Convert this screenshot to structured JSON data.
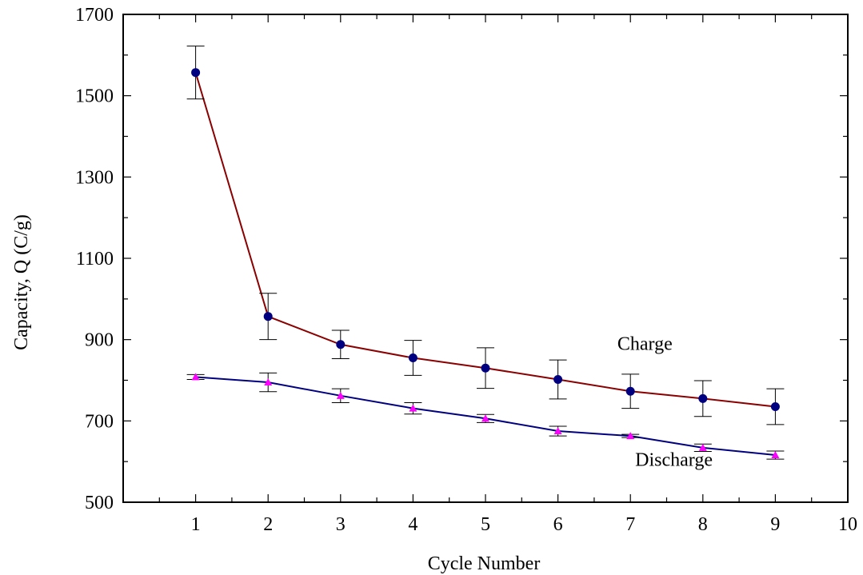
{
  "chart_data": {
    "type": "line",
    "title": "",
    "xlabel": "Cycle Number",
    "ylabel": "Capacity, Q (C/g)",
    "xlim": [
      0,
      10
    ],
    "ylim": [
      500,
      1700
    ],
    "x_ticks": [
      1,
      2,
      3,
      4,
      5,
      6,
      7,
      8,
      9,
      10
    ],
    "y_ticks": [
      500,
      700,
      900,
      1100,
      1300,
      1500,
      1700
    ],
    "grid": false,
    "legend": "none",
    "x": [
      1,
      2,
      3,
      4,
      5,
      6,
      7,
      8,
      9
    ],
    "series": [
      {
        "name": "Charge",
        "values": [
          1557,
          957,
          888,
          855,
          830,
          802,
          773,
          755,
          735
        ],
        "errors": [
          65,
          57,
          35,
          43,
          50,
          48,
          42,
          44,
          44
        ],
        "line_color": "#8b0000",
        "marker": "circle",
        "marker_color": "#000080"
      },
      {
        "name": "Discharge",
        "values": [
          808,
          795,
          762,
          731,
          706,
          675,
          663,
          634,
          616
        ],
        "errors": [
          6,
          23,
          17,
          14,
          10,
          12,
          4,
          9,
          10
        ],
        "line_color": "#000080",
        "marker": "triangle",
        "marker_color": "#ff00ff"
      }
    ],
    "annotations": [
      {
        "text": "Charge",
        "series": "Charge",
        "x": 7.2,
        "y": 875
      },
      {
        "text": "Discharge",
        "series": "Discharge",
        "x": 7.6,
        "y": 590
      }
    ]
  }
}
